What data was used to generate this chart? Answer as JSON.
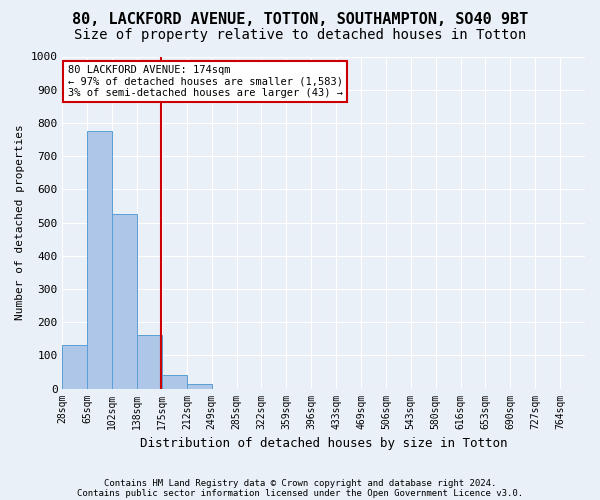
{
  "title": "80, LACKFORD AVENUE, TOTTON, SOUTHAMPTON, SO40 9BT",
  "subtitle": "Size of property relative to detached houses in Totton",
  "xlabel": "Distribution of detached houses by size in Totton",
  "ylabel": "Number of detached properties",
  "footnote1": "Contains HM Land Registry data © Crown copyright and database right 2024.",
  "footnote2": "Contains public sector information licensed under the Open Government Licence v3.0.",
  "bin_labels": [
    "28sqm",
    "65sqm",
    "102sqm",
    "138sqm",
    "175sqm",
    "212sqm",
    "249sqm",
    "285sqm",
    "322sqm",
    "359sqm",
    "396sqm",
    "433sqm",
    "469sqm",
    "506sqm",
    "543sqm",
    "580sqm",
    "616sqm",
    "653sqm",
    "690sqm",
    "727sqm",
    "764sqm"
  ],
  "bar_values": [
    130,
    775,
    525,
    160,
    40,
    15,
    0,
    0,
    0,
    0,
    0,
    0,
    0,
    0,
    0,
    0,
    0,
    0,
    0,
    0,
    0
  ],
  "bar_color": "#aec6e8",
  "bar_edge_color": "#5a9fd4",
  "property_line_x": 3.95,
  "property_line_color": "#cc0000",
  "annotation_text": "80 LACKFORD AVENUE: 174sqm\n← 97% of detached houses are smaller (1,583)\n3% of semi-detached houses are larger (43) →",
  "annotation_box_color": "#cc0000",
  "ylim": [
    0,
    1000
  ],
  "yticks": [
    0,
    100,
    200,
    300,
    400,
    500,
    600,
    700,
    800,
    900,
    1000
  ],
  "bg_color": "#eaf0f8",
  "plot_bg_color": "#eaf0f8",
  "grid_color": "#ffffff",
  "title_fontsize": 11,
  "subtitle_fontsize": 10
}
